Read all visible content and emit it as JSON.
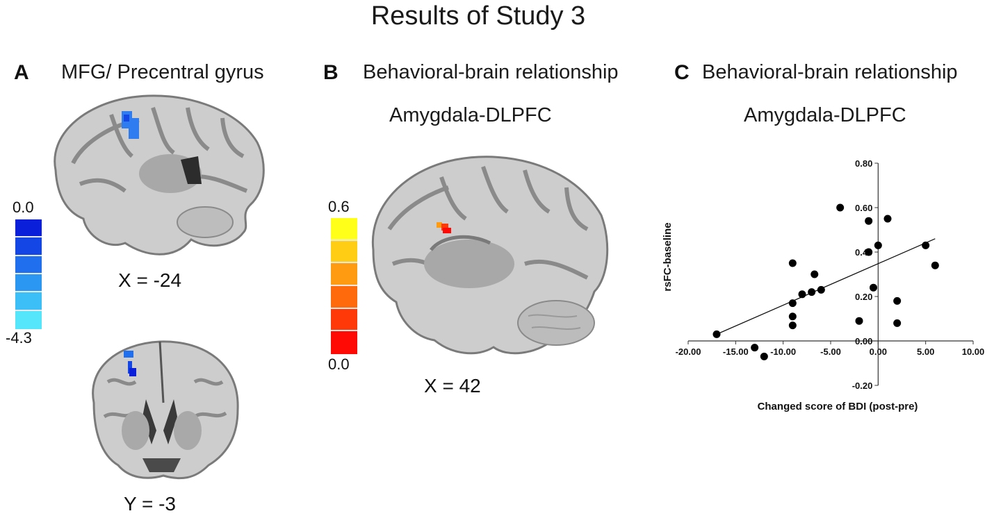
{
  "figure": {
    "title": "Results of Study 3"
  },
  "panel_a": {
    "letter": "A",
    "heading": "MFG/ Precentral gyrus",
    "sagittal_label": "X = -24",
    "coronal_label": "Y = -3",
    "colorbar": {
      "max_label": "0.0",
      "min_label": "-4.3",
      "colors": [
        "#0a1fd9",
        "#1446e6",
        "#1f6fef",
        "#2c96f3",
        "#3cbef6",
        "#55e6fb"
      ]
    }
  },
  "panel_b": {
    "letter": "B",
    "heading": "Behavioral-brain relationship",
    "subheading": "Amygdala-DLPFC",
    "sagittal_label": "X = 42",
    "colorbar": {
      "max_label": "0.6",
      "min_label": "0.0",
      "colors": [
        "#ffff1a",
        "#ffce14",
        "#ff9b10",
        "#ff6a0c",
        "#ff3a08",
        "#ff0a04"
      ]
    }
  },
  "panel_c": {
    "letter": "C",
    "heading": "Behavioral-brain relationship",
    "subheading": "Amygdala-DLPFC"
  },
  "chart_data": {
    "type": "scatter",
    "xlabel": "Changed score of BDI (post-pre)",
    "ylabel": "rsFC-baseline",
    "xlim": [
      -20,
      10
    ],
    "ylim": [
      -0.2,
      0.8
    ],
    "x_ticks": [
      -20,
      -15,
      -10,
      -5,
      0,
      5,
      10
    ],
    "x_tick_labels": [
      "-20.00",
      "-15.00",
      "-10.00",
      "-5.00",
      "0.00",
      "5.00",
      "10.00"
    ],
    "y_ticks": [
      -0.2,
      0,
      0.2,
      0.4,
      0.6,
      0.8
    ],
    "y_tick_labels": [
      "-0.20",
      "0.00",
      "0.20",
      "0.40",
      "0.60",
      "0.80"
    ],
    "grid": false,
    "points": [
      {
        "x": -17,
        "y": 0.03
      },
      {
        "x": -13,
        "y": -0.03
      },
      {
        "x": -12,
        "y": -0.07
      },
      {
        "x": -9,
        "y": 0.35
      },
      {
        "x": -9,
        "y": 0.17
      },
      {
        "x": -9,
        "y": 0.11
      },
      {
        "x": -9,
        "y": 0.07
      },
      {
        "x": -8,
        "y": 0.21
      },
      {
        "x": -7,
        "y": 0.22
      },
      {
        "x": -6.7,
        "y": 0.3
      },
      {
        "x": -6,
        "y": 0.23
      },
      {
        "x": -4,
        "y": 0.6
      },
      {
        "x": -1,
        "y": 0.54
      },
      {
        "x": -1,
        "y": 0.4
      },
      {
        "x": -0.5,
        "y": 0.24
      },
      {
        "x": 0,
        "y": 0.43
      },
      {
        "x": -2,
        "y": 0.09
      },
      {
        "x": 1,
        "y": 0.55
      },
      {
        "x": 2,
        "y": 0.18
      },
      {
        "x": 2,
        "y": 0.08
      },
      {
        "x": 5,
        "y": 0.43
      },
      {
        "x": 6,
        "y": 0.34
      }
    ],
    "trendline": {
      "x": [
        -17,
        6
      ],
      "y": [
        0.03,
        0.46
      ]
    }
  }
}
